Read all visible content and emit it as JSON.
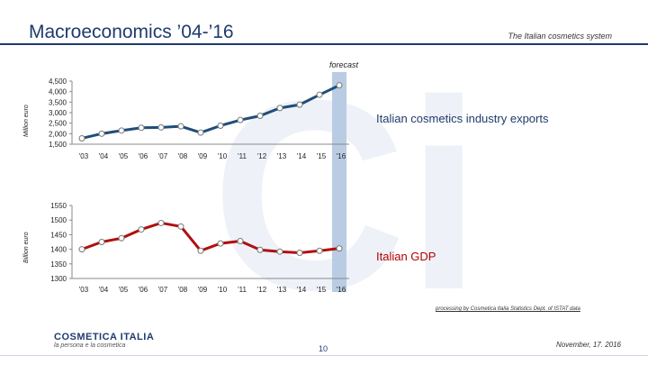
{
  "header": {
    "title": "Macroeconomics ’04-’16",
    "right_caption": "The Italian cosmetics system"
  },
  "forecast_label": "forecast",
  "watermark": "Ci",
  "chart_data": [
    {
      "type": "line",
      "title": "Italian cosmetics industry exports",
      "ylabel": "Million euro",
      "categories": [
        "'03",
        "'04",
        "'05",
        "'06",
        "'07",
        "'08",
        "'09",
        "'10",
        "'11",
        "'12",
        "'13",
        "'14",
        "'15",
        "'16"
      ],
      "y_ticks": [
        "4,500",
        "4,000",
        "3,500",
        "3,000",
        "2,500",
        "2,000",
        "1,500"
      ],
      "ylim": [
        1500,
        4500
      ],
      "values": [
        1780,
        2000,
        2150,
        2280,
        2300,
        2350,
        2050,
        2380,
        2650,
        2850,
        3220,
        3380,
        3850,
        4300
      ],
      "color": "#1f4e79"
    },
    {
      "type": "line",
      "title": "Italian GDP",
      "ylabel": "Billion euro",
      "categories": [
        "'03",
        "'04",
        "'05",
        "'06",
        "'07",
        "'08",
        "'09",
        "'10",
        "'11",
        "'12",
        "'13",
        "'14",
        "'15",
        "'16"
      ],
      "y_ticks": [
        "1550",
        "1500",
        "1450",
        "1400",
        "1350",
        "1300"
      ],
      "ylim": [
        1300,
        1550
      ],
      "values": [
        1400,
        1425,
        1438,
        1468,
        1490,
        1478,
        1395,
        1420,
        1428,
        1398,
        1392,
        1388,
        1395,
        1403
      ],
      "color": "#b01010"
    }
  ],
  "footer": {
    "source": "processing by Cosmetica Italia Statistics Dept. of ISTAT data",
    "page": "10",
    "date": "November, 17. 2016",
    "logo_name": "COSMETICA ITALIA",
    "logo_tagline": "la persona e la cosmetica"
  },
  "colors": {
    "brand": "#1f3b6e",
    "forecast_band": "#b9cce4",
    "watermark": "#eef2f8"
  }
}
